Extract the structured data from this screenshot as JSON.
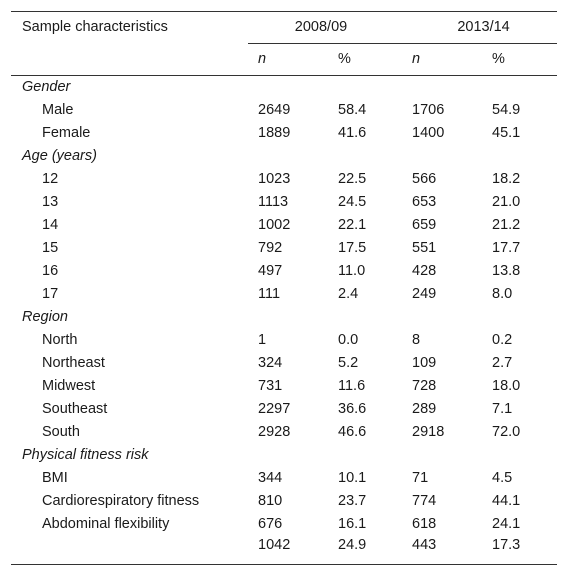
{
  "header": {
    "label": "Sample characteristics",
    "year1": "2008/09",
    "year2": "2013/14",
    "n_label": "n",
    "pct_label": "%"
  },
  "groups": [
    {
      "title": "Gender",
      "rows": [
        {
          "label": "Male",
          "n1": "2649",
          "p1": "58.4",
          "n2": "1706",
          "p2": "54.9"
        },
        {
          "label": "Female",
          "n1": "1889",
          "p1": "41.6",
          "n2": "1400",
          "p2": "45.1"
        }
      ]
    },
    {
      "title": "Age (years)",
      "rows": [
        {
          "label": "12",
          "n1": "1023",
          "p1": "22.5",
          "n2": "566",
          "p2": "18.2"
        },
        {
          "label": "13",
          "n1": "1113",
          "p1": "24.5",
          "n2": "653",
          "p2": "21.0"
        },
        {
          "label": "14",
          "n1": "1002",
          "p1": "22.1",
          "n2": "659",
          "p2": "21.2"
        },
        {
          "label": "15",
          "n1": "792",
          "p1": "17.5",
          "n2": "551",
          "p2": "17.7"
        },
        {
          "label": "16",
          "n1": "497",
          "p1": "11.0",
          "n2": "428",
          "p2": "13.8"
        },
        {
          "label": "17",
          "n1": "111",
          "p1": "2.4",
          "n2": "249",
          "p2": "8.0"
        }
      ]
    },
    {
      "title": "Region",
      "rows": [
        {
          "label": "North",
          "n1": "1",
          "p1": "0.0",
          "n2": "8",
          "p2": "0.2"
        },
        {
          "label": "Northeast",
          "n1": "324",
          "p1": "5.2",
          "n2": "109",
          "p2": "2.7"
        },
        {
          "label": "Midwest",
          "n1": "731",
          "p1": "11.6",
          "n2": "728",
          "p2": "18.0"
        },
        {
          "label": "Southeast",
          "n1": "2297",
          "p1": "36.6",
          "n2": "289",
          "p2": "7.1"
        },
        {
          "label": "South",
          "n1": "2928",
          "p1": "46.6",
          "n2": "2918",
          "p2": "72.0"
        }
      ]
    },
    {
      "title": "Physical fitness risk",
      "rows": [
        {
          "label": "BMI",
          "n1": "344",
          "p1": "10.1",
          "n2": "71",
          "p2": "4.5"
        },
        {
          "label": "Cardiorespiratory fitness",
          "n1": "810",
          "p1": "23.7",
          "n2": "774",
          "p2": "44.1"
        },
        {
          "label": "Abdominal flexibility",
          "n1": "676",
          "p1": "16.1",
          "n2": "618",
          "p2": "24.1"
        },
        {
          "label": "",
          "n1": "1042",
          "p1": "24.9",
          "n2": "443",
          "p2": "17.3"
        }
      ]
    }
  ]
}
